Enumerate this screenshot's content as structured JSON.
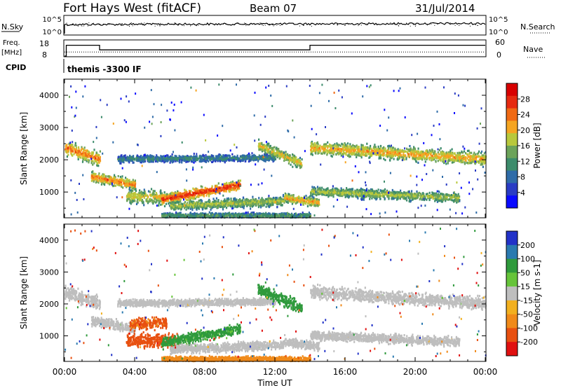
{
  "header": {
    "station": "Fort Hays West (fitACF)",
    "beam": "Beam 07",
    "date": "31/Jul/2014"
  },
  "noise_panel": {
    "left_label": "N.Sky",
    "left_ticks": [
      "10^5",
      "10^0"
    ],
    "right_ticks": [
      "10^5",
      "10^0"
    ],
    "right_label": "N.Search"
  },
  "freq_panel": {
    "left_label_1": "Freq.",
    "left_label_2": "[MHz]",
    "left_ticks": [
      "18",
      "8"
    ],
    "right_ticks": [
      "60",
      "0"
    ],
    "right_label": "Nave",
    "freq_steps": [
      {
        "t0": 0.0,
        "t1": 0.1,
        "value": 8
      },
      {
        "t0": 0.1,
        "t1": 2.0,
        "value": 15
      },
      {
        "t0": 2.0,
        "t1": 14.0,
        "value": 12
      },
      {
        "t0": 14.0,
        "t1": 24.0,
        "value": 15
      }
    ],
    "nave_level": 12
  },
  "cpid": {
    "label": "CPID",
    "value": "themis -3300 IF"
  },
  "colors": {
    "power_scale": [
      "#0a0aff",
      "#2a3cc4",
      "#2f6ca8",
      "#3d8c6c",
      "#6ca35a",
      "#b8c83c",
      "#f5a522",
      "#f06a14",
      "#e62a10",
      "#d80000"
    ],
    "velocity_scale": [
      "#2232c8",
      "#2a7ab0",
      "#2f9a3c",
      "#66c43a",
      "#bebebe",
      "#f2b020",
      "#f08a1a",
      "#e85010",
      "#e01010"
    ]
  },
  "chart_data": [
    {
      "type": "heatmap",
      "name": "power",
      "ylabel": "Slant Range [km]",
      "xlim": [
        0,
        24
      ],
      "ylim": [
        200,
        4500
      ],
      "yticks": [
        "1000",
        "2000",
        "3000",
        "4000"
      ],
      "colorbar_label": "Power [dB]",
      "colorbar_ticks": [
        "28",
        "24",
        "20",
        "16",
        "12",
        "8",
        "4"
      ],
      "colorbar_range": [
        0,
        32
      ],
      "echo_bands": [
        {
          "t0": 0.0,
          "t1": 2.0,
          "r_start": 2400,
          "r_end": 2050,
          "width": 300,
          "power": 22
        },
        {
          "t0": 1.5,
          "t1": 4.0,
          "r_start": 1500,
          "r_end": 1250,
          "width": 220,
          "power": 22
        },
        {
          "t0": 3.5,
          "t1": 6.5,
          "r_start": 900,
          "r_end": 850,
          "width": 300,
          "power": 18
        },
        {
          "t0": 5.5,
          "t1": 10.0,
          "r_start": 800,
          "r_end": 1250,
          "width": 220,
          "power": 26
        },
        {
          "t0": 3.0,
          "t1": 12.0,
          "r_start": 2050,
          "r_end": 2100,
          "width": 150,
          "power": 10
        },
        {
          "t0": 6.0,
          "t1": 12.5,
          "r_start": 600,
          "r_end": 750,
          "width": 200,
          "power": 16
        },
        {
          "t0": 11.0,
          "t1": 13.5,
          "r_start": 2500,
          "r_end": 1900,
          "width": 250,
          "power": 18
        },
        {
          "t0": 12.5,
          "t1": 14.5,
          "r_start": 850,
          "r_end": 700,
          "width": 200,
          "power": 20
        },
        {
          "t0": 14.0,
          "t1": 24.0,
          "r_start": 2400,
          "r_end": 2050,
          "width": 280,
          "power": 20
        },
        {
          "t0": 14.0,
          "t1": 22.5,
          "r_start": 1050,
          "r_end": 850,
          "width": 200,
          "power": 16
        },
        {
          "t0": 5.5,
          "t1": 14.0,
          "r_start": 300,
          "r_end": 300,
          "width": 120,
          "power": 12
        }
      ]
    },
    {
      "type": "heatmap",
      "name": "velocity",
      "xlabel": "Time UT",
      "ylabel": "Slant Range [km]",
      "xlim": [
        0,
        24
      ],
      "ylim": [
        200,
        4500
      ],
      "xticks": [
        "00:00",
        "04:00",
        "08:00",
        "12:00",
        "16:00",
        "20:00",
        "00:00"
      ],
      "yticks": [
        "1000",
        "2000",
        "3000",
        "4000"
      ],
      "colorbar_label": "Velocity [m s-1]",
      "colorbar_ticks": [
        "200",
        "100",
        "50",
        "15",
        "-15",
        "-50",
        "-100",
        "-200"
      ],
      "echo_bands": [
        {
          "t0": 0.0,
          "t1": 2.0,
          "r_start": 2400,
          "r_end": 2050,
          "width": 300,
          "velocity": 0
        },
        {
          "t0": 1.5,
          "t1": 4.0,
          "r_start": 1500,
          "r_end": 1250,
          "width": 220,
          "velocity": 0
        },
        {
          "t0": 3.5,
          "t1": 6.5,
          "r_start": 900,
          "r_end": 850,
          "width": 300,
          "velocity": -120
        },
        {
          "t0": 3.7,
          "t1": 5.8,
          "r_start": 1400,
          "r_end": 1450,
          "width": 250,
          "velocity": -80
        },
        {
          "t0": 5.5,
          "t1": 10.0,
          "r_start": 800,
          "r_end": 1250,
          "width": 220,
          "velocity": 40
        },
        {
          "t0": 3.0,
          "t1": 12.0,
          "r_start": 2050,
          "r_end": 2100,
          "width": 150,
          "velocity": 0
        },
        {
          "t0": 6.0,
          "t1": 12.5,
          "r_start": 600,
          "r_end": 750,
          "width": 200,
          "velocity": 0
        },
        {
          "t0": 11.0,
          "t1": 13.5,
          "r_start": 2500,
          "r_end": 1900,
          "width": 250,
          "velocity": 60
        },
        {
          "t0": 12.5,
          "t1": 14.5,
          "r_start": 850,
          "r_end": 700,
          "width": 200,
          "velocity": 0
        },
        {
          "t0": 14.0,
          "t1": 24.0,
          "r_start": 2400,
          "r_end": 2050,
          "width": 280,
          "velocity": 0
        },
        {
          "t0": 14.0,
          "t1": 22.5,
          "r_start": 1050,
          "r_end": 850,
          "width": 200,
          "velocity": 0
        },
        {
          "t0": 5.5,
          "t1": 14.0,
          "r_start": 300,
          "r_end": 300,
          "width": 120,
          "velocity": -60
        }
      ]
    }
  ]
}
